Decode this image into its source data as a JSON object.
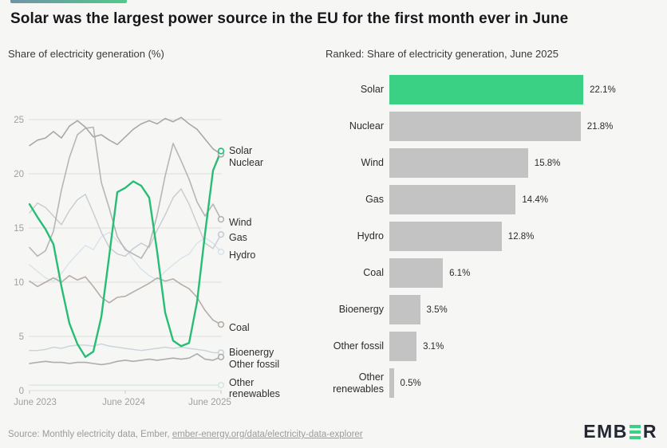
{
  "header": {
    "title": "Solar was the largest power source in the EU for the first month ever in June"
  },
  "colors": {
    "background": "#f6f6f4",
    "accent_gradient": [
      "#7193a8",
      "#52c98b"
    ],
    "solar_green_bar": "#3bd185",
    "solar_green_line": "#27bd74",
    "bar_gray": "#c3c3c3",
    "grid_gray": "#dddddb",
    "axis_text_gray": "#a0a09c",
    "title_black": "#17171b"
  },
  "footer": {
    "source_prefix": "Source: Monthly electricity data, Ember, ",
    "source_link": "ember-energy.org/data/electricity-data-explorer",
    "logo_left": "EMB",
    "logo_right": "R"
  },
  "chart_data": [
    {
      "type": "line",
      "title": "Share of electricity generation (%)",
      "x": [
        "Jun 2023",
        "Jul 2023",
        "Aug 2023",
        "Sep 2023",
        "Oct 2023",
        "Nov 2023",
        "Dec 2023",
        "Jan 2024",
        "Feb 2024",
        "Mar 2024",
        "Apr 2024",
        "May 2024",
        "Jun 2024",
        "Jul 2024",
        "Aug 2024",
        "Sep 2024",
        "Oct 2024",
        "Nov 2024",
        "Dec 2024",
        "Jan 2025",
        "Feb 2025",
        "Mar 2025",
        "Apr 2025",
        "May 2025",
        "Jun 2025"
      ],
      "x_tick_labels": [
        "June 2023",
        "June 2024",
        "June 2025"
      ],
      "ylim": [
        0,
        25
      ],
      "yticks": [
        0,
        5,
        10,
        15,
        20,
        25
      ],
      "grid": true,
      "legend_position": "right-end-labels",
      "series": [
        {
          "name": "Other renewables",
          "label_lines": [
            "Other",
            "renewables"
          ],
          "color": "#d5e8db",
          "values": [
            0.5,
            0.5,
            0.5,
            0.5,
            0.5,
            0.5,
            0.5,
            0.5,
            0.5,
            0.5,
            0.5,
            0.5,
            0.5,
            0.5,
            0.5,
            0.5,
            0.5,
            0.5,
            0.5,
            0.5,
            0.5,
            0.5,
            0.5,
            0.5,
            0.5
          ]
        },
        {
          "name": "Hydro",
          "label_lines": [
            "Hydro"
          ],
          "color": "#d8e3ea",
          "values": [
            11.6,
            11.0,
            10.4,
            10.1,
            10.8,
            11.8,
            12.6,
            13.4,
            13.0,
            14.2,
            14.6,
            13.8,
            13.2,
            12.1,
            11.2,
            10.6,
            10.2,
            11.0,
            11.6,
            12.2,
            12.6,
            13.6,
            14.1,
            13.6,
            12.8
          ]
        },
        {
          "name": "Gas",
          "label_lines": [
            "Gas"
          ],
          "color": "#c6ccd1",
          "values": [
            16.4,
            17.3,
            16.9,
            16.1,
            15.3,
            16.6,
            17.6,
            18.1,
            16.4,
            14.6,
            13.2,
            12.6,
            12.4,
            13.1,
            13.6,
            13.2,
            14.8,
            16.2,
            17.8,
            18.6,
            17.2,
            15.4,
            13.6,
            13.1,
            14.4
          ]
        },
        {
          "name": "Bioenergy",
          "label_lines": [
            "Bioenergy"
          ],
          "color": "#c9d3da",
          "values": [
            3.7,
            3.7,
            3.8,
            4.0,
            3.9,
            4.1,
            4.2,
            4.2,
            4.1,
            4.3,
            4.1,
            4.0,
            3.9,
            3.8,
            3.7,
            3.8,
            3.9,
            4.0,
            3.9,
            4.0,
            3.9,
            3.8,
            3.7,
            3.5,
            3.5
          ]
        },
        {
          "name": "Coal",
          "label_lines": [
            "Coal"
          ],
          "color": "#b6ada8",
          "values": [
            10.1,
            9.6,
            10.0,
            10.4,
            10.0,
            10.6,
            10.2,
            10.5,
            9.6,
            8.6,
            8.1,
            8.6,
            8.7,
            9.1,
            9.5,
            9.9,
            10.4,
            10.1,
            10.3,
            9.8,
            9.4,
            8.6,
            7.4,
            6.5,
            6.1
          ]
        },
        {
          "name": "Other fossil",
          "label_lines": [
            "Other fossil"
          ],
          "color": "#adadad",
          "values": [
            2.5,
            2.6,
            2.7,
            2.6,
            2.6,
            2.5,
            2.6,
            2.6,
            2.5,
            2.4,
            2.5,
            2.7,
            2.8,
            2.7,
            2.8,
            2.9,
            2.8,
            2.9,
            3.0,
            2.9,
            3.0,
            3.4,
            2.9,
            2.8,
            3.1
          ]
        },
        {
          "name": "Wind",
          "label_lines": [
            "Wind"
          ],
          "color": "#b6b6b6",
          "values": [
            13.2,
            12.4,
            12.9,
            14.7,
            18.5,
            21.5,
            23.6,
            24.2,
            24.3,
            19.2,
            16.8,
            14.2,
            13.0,
            12.6,
            12.2,
            13.4,
            16.2,
            19.8,
            22.8,
            21.2,
            19.5,
            17.4,
            16.1,
            17.2,
            15.8
          ]
        },
        {
          "name": "Nuclear",
          "label_lines": [
            "Nuclear"
          ],
          "color": "#a8a8a8",
          "values": [
            22.6,
            23.1,
            23.3,
            23.9,
            23.3,
            24.4,
            24.9,
            24.3,
            23.4,
            23.6,
            23.1,
            22.7,
            23.4,
            24.1,
            24.6,
            24.9,
            24.6,
            25.1,
            24.8,
            25.2,
            24.6,
            24.1,
            23.2,
            22.3,
            21.8
          ]
        },
        {
          "name": "Solar",
          "label_lines": [
            "Solar"
          ],
          "color": "#27bd74",
          "values": [
            17.2,
            16.0,
            14.9,
            13.5,
            9.6,
            6.2,
            4.3,
            3.1,
            3.6,
            6.8,
            12.5,
            18.3,
            18.7,
            19.3,
            18.9,
            17.8,
            12.8,
            7.2,
            4.6,
            4.1,
            4.4,
            8.2,
            14.5,
            20.3,
            22.1
          ]
        }
      ]
    },
    {
      "type": "bar",
      "title": "Ranked: Share of electricity generation, June 2025",
      "categories": [
        "Solar",
        "Nuclear",
        "Wind",
        "Gas",
        "Hydro",
        "Coal",
        "Bioenergy",
        "Other fossil",
        "Other renewables"
      ],
      "values": [
        22.1,
        21.8,
        15.8,
        14.4,
        12.8,
        6.1,
        3.5,
        3.1,
        0.5
      ],
      "value_labels": [
        "22.1%",
        "21.8%",
        "15.8%",
        "14.4%",
        "12.8%",
        "6.1%",
        "3.5%",
        "3.1%",
        "0.5%"
      ],
      "bar_colors": [
        "#3bd185",
        "#c3c3c3",
        "#c3c3c3",
        "#c3c3c3",
        "#c3c3c3",
        "#c3c3c3",
        "#c3c3c3",
        "#c3c3c3",
        "#c3c3c3"
      ],
      "xlabel": "",
      "ylabel": "",
      "grid": false
    }
  ]
}
